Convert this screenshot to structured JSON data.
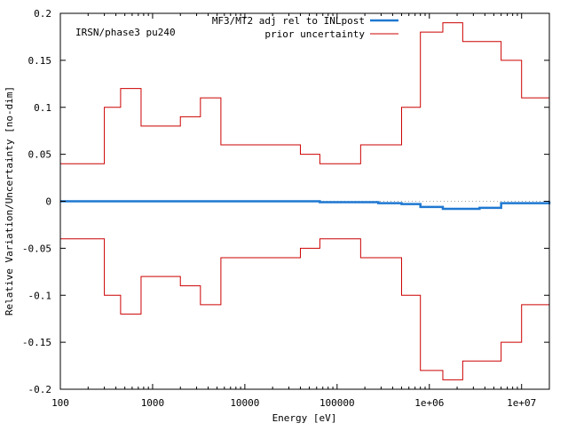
{
  "chart_data": {
    "type": "line",
    "annotation": "IRSN/phase3 pu240",
    "xlabel": "Energy [eV]",
    "ylabel": "Relative Variation/Uncertainty [no-dim]",
    "x_scale": "log",
    "xlim": [
      100,
      20000000
    ],
    "ylim": [
      -0.2,
      0.2
    ],
    "grid": false,
    "legend_position": "top-right",
    "x_ticks": [
      {
        "value": 100,
        "label": "100"
      },
      {
        "value": 1000,
        "label": "1000"
      },
      {
        "value": 10000,
        "label": "10000"
      },
      {
        "value": 100000,
        "label": "100000"
      },
      {
        "value": 1000000,
        "label": "1e+06"
      },
      {
        "value": 10000000,
        "label": "1e+07"
      }
    ],
    "y_ticks": [
      {
        "value": 0.2,
        "label": "0.2"
      },
      {
        "value": 0.15,
        "label": "0.15"
      },
      {
        "value": 0.1,
        "label": "0.1"
      },
      {
        "value": 0.05,
        "label": "0.05"
      },
      {
        "value": 0,
        "label": "0"
      },
      {
        "value": -0.05,
        "label": "-0.05"
      },
      {
        "value": -0.1,
        "label": "-0.1"
      },
      {
        "value": -0.15,
        "label": "-0.15"
      },
      {
        "value": -0.2,
        "label": "-0.2"
      }
    ],
    "series": [
      {
        "name": "MF3/MT2 adj rel to INLpost",
        "color": "#1f78d1",
        "style": "step",
        "edges": [
          100,
          65000,
          280000,
          500000,
          800000,
          1400000,
          3500000,
          6000000,
          20000000
        ],
        "values": [
          0.0,
          -0.001,
          -0.002,
          -0.003,
          -0.006,
          -0.008,
          -0.007,
          -0.002,
          0.0
        ]
      },
      {
        "name": "prior uncertainty",
        "color": "#cc0000",
        "style": "step",
        "mirror": true,
        "edges": [
          100,
          300,
          450,
          750,
          2000,
          3300,
          5500,
          40000,
          65000,
          180000,
          500000,
          800000,
          1400000,
          2300000,
          6000000,
          10000000,
          20000000
        ],
        "values": [
          0.04,
          0.1,
          0.12,
          0.08,
          0.09,
          0.11,
          0.06,
          0.05,
          0.04,
          0.06,
          0.1,
          0.18,
          0.19,
          0.17,
          0.15,
          0.11
        ]
      }
    ]
  }
}
